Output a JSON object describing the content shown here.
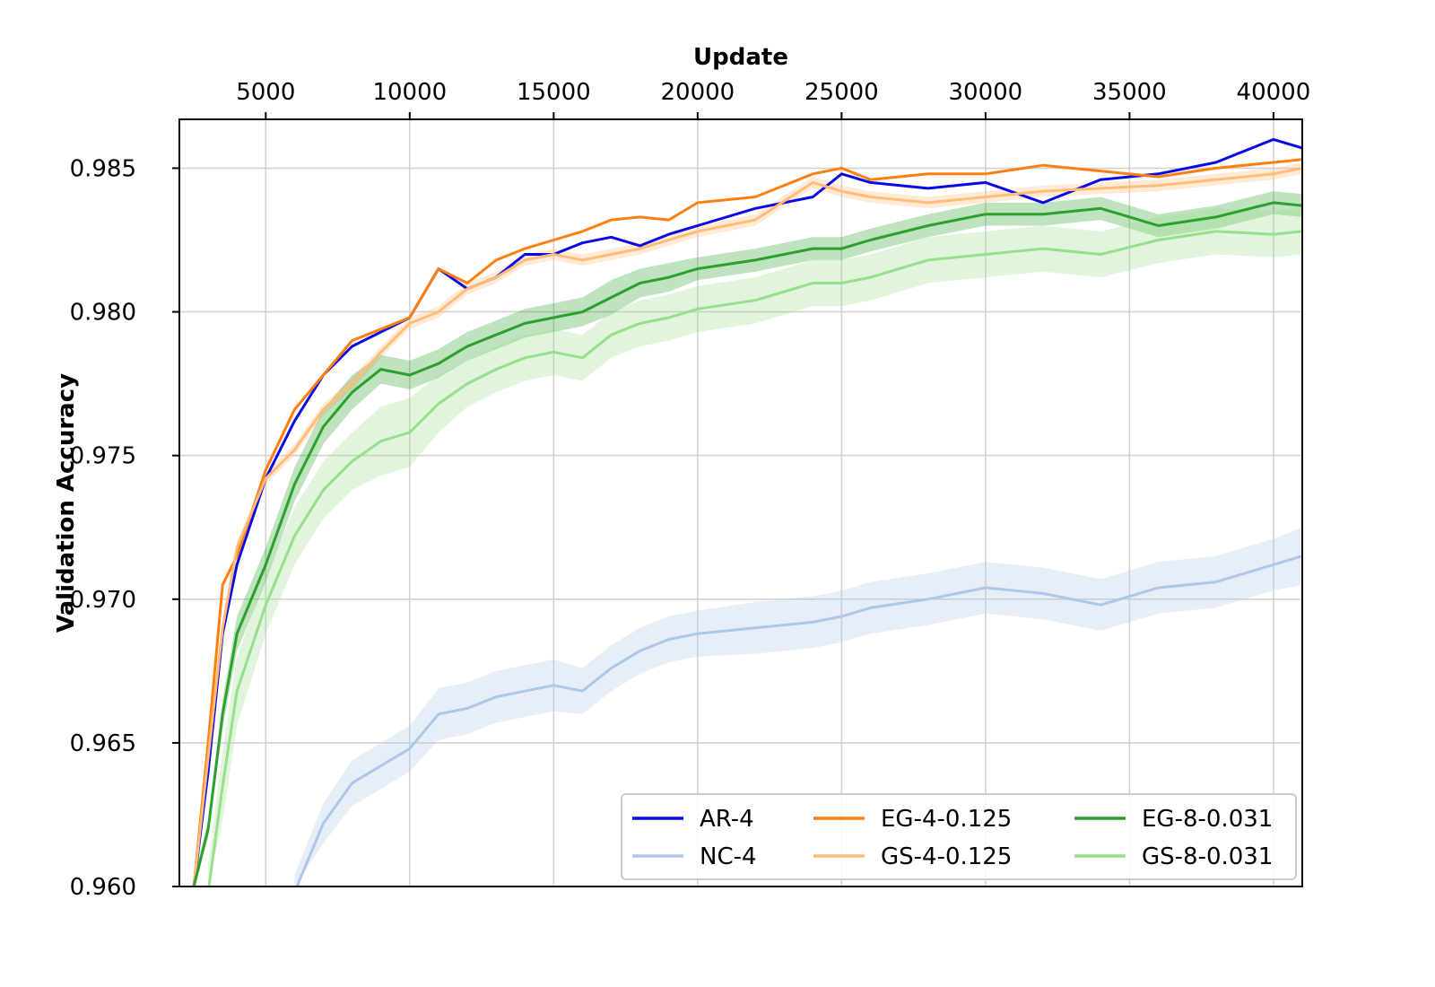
{
  "chart_data": {
    "type": "line",
    "title": "",
    "xlabel": "Update",
    "ylabel": "Validation Accuracy",
    "xaxis_position": "top",
    "xlim": [
      2000,
      41000
    ],
    "ylim": [
      0.96,
      0.9867
    ],
    "xticks": [
      5000,
      10000,
      15000,
      20000,
      25000,
      30000,
      35000,
      40000
    ],
    "yticks": [
      0.96,
      0.965,
      0.97,
      0.975,
      0.98,
      0.985
    ],
    "ytick_labels": [
      "0.960",
      "0.965",
      "0.970",
      "0.975",
      "0.980",
      "0.985"
    ],
    "grid": true,
    "legend_position": "lower-right",
    "legend_columns": 3,
    "x": [
      2500,
      3000,
      3500,
      4000,
      5000,
      6000,
      7000,
      8000,
      9000,
      10000,
      11000,
      12000,
      13000,
      14000,
      15000,
      16000,
      17000,
      18000,
      19000,
      20000,
      22000,
      24000,
      25000,
      26000,
      28000,
      30000,
      32000,
      34000,
      36000,
      38000,
      40000,
      41000
    ],
    "series": [
      {
        "name": "AR-4",
        "color": "#0a0ae6",
        "band": false,
        "values": [
          0.96,
          0.964,
          0.9688,
          0.9712,
          0.9742,
          0.9762,
          0.9778,
          0.9788,
          0.9793,
          0.9798,
          0.9815,
          0.9808,
          0.9812,
          0.982,
          0.982,
          0.9824,
          0.9826,
          0.9823,
          0.9827,
          0.983,
          0.9836,
          0.984,
          0.9848,
          0.9845,
          0.9843,
          0.9845,
          0.9838,
          0.9846,
          0.9848,
          0.9852,
          0.986,
          0.9857
        ]
      },
      {
        "name": "NC-4",
        "color": "#aec7e8",
        "band": true,
        "band_width": [
          0.0003,
          0.0003,
          0.0003,
          0.0003,
          0.0005,
          0.0006,
          0.0007,
          0.0008,
          0.0008,
          0.0008,
          0.0009,
          0.0009,
          0.0009,
          0.0009,
          0.0009,
          0.0008,
          0.0008,
          0.0008,
          0.0008,
          0.0008,
          0.0009,
          0.0009,
          0.0009,
          0.0009,
          0.0009,
          0.0009,
          0.0009,
          0.0009,
          0.0009,
          0.0009,
          0.0009,
          0.001
        ],
        "values": [
          null,
          null,
          null,
          null,
          null,
          0.9598,
          0.9622,
          0.9636,
          0.9642,
          0.9648,
          0.966,
          0.9662,
          0.9666,
          0.9668,
          0.967,
          0.9668,
          0.9676,
          0.9682,
          0.9686,
          0.9688,
          0.969,
          0.9692,
          0.9694,
          0.9697,
          0.97,
          0.9704,
          0.9702,
          0.9698,
          0.9704,
          0.9706,
          0.9712,
          0.9715
        ]
      },
      {
        "name": "EG-4-0.125",
        "color": "#ff7f0e",
        "band": false,
        "values": [
          0.96,
          0.965,
          0.9705,
          0.9715,
          0.9745,
          0.9766,
          0.9778,
          0.979,
          0.9794,
          0.9798,
          0.9815,
          0.981,
          0.9818,
          0.9822,
          0.9825,
          0.9828,
          0.9832,
          0.9833,
          0.9832,
          0.9838,
          0.984,
          0.9848,
          0.985,
          0.9846,
          0.9848,
          0.9848,
          0.9851,
          0.9849,
          0.9847,
          0.985,
          0.9852,
          0.9853
        ]
      },
      {
        "name": "GS-4-0.125",
        "color": "#ffbb78",
        "band": true,
        "band_width": [
          0.0002,
          0.0002,
          0.0002,
          0.0002,
          0.0002,
          0.0002,
          0.0002,
          0.0002,
          0.0002,
          0.0002,
          0.0002,
          0.0002,
          0.0002,
          0.0002,
          0.0002,
          0.0002,
          0.0002,
          0.0002,
          0.0002,
          0.0002,
          0.0002,
          0.0002,
          0.0002,
          0.0002,
          0.0002,
          0.0002,
          0.0002,
          0.0002,
          0.0002,
          0.0002,
          0.0002,
          0.0002
        ],
        "values": [
          0.96,
          0.9645,
          0.969,
          0.9718,
          0.9742,
          0.9752,
          0.9766,
          0.9775,
          0.9786,
          0.9796,
          0.98,
          0.9808,
          0.9812,
          0.9818,
          0.982,
          0.9818,
          0.982,
          0.9822,
          0.9825,
          0.9828,
          0.9832,
          0.9845,
          0.9842,
          0.984,
          0.9838,
          0.984,
          0.9842,
          0.9843,
          0.9844,
          0.9846,
          0.9848,
          0.985
        ]
      },
      {
        "name": "EG-8-0.031",
        "color": "#2ca02c",
        "band": true,
        "band_width": [
          0.0003,
          0.0003,
          0.0005,
          0.0006,
          0.0006,
          0.0006,
          0.0006,
          0.0006,
          0.0005,
          0.0005,
          0.0005,
          0.0005,
          0.0005,
          0.0005,
          0.0005,
          0.0005,
          0.0006,
          0.0005,
          0.0005,
          0.0004,
          0.0004,
          0.0004,
          0.0004,
          0.0004,
          0.0004,
          0.0004,
          0.0004,
          0.0004,
          0.0004,
          0.0004,
          0.0004,
          0.0004
        ],
        "values": [
          0.96,
          0.962,
          0.966,
          0.9688,
          0.9712,
          0.974,
          0.976,
          0.9772,
          0.978,
          0.9778,
          0.9782,
          0.9788,
          0.9792,
          0.9796,
          0.9798,
          0.98,
          0.9805,
          0.981,
          0.9812,
          0.9815,
          0.9818,
          0.9822,
          0.9822,
          0.9825,
          0.983,
          0.9834,
          0.9834,
          0.9836,
          0.983,
          0.9833,
          0.9838,
          0.9837
        ]
      },
      {
        "name": "GS-8-0.031",
        "color": "#98df8a",
        "band": true,
        "band_width": [
          0.0008,
          0.001,
          0.0012,
          0.0012,
          0.001,
          0.001,
          0.001,
          0.001,
          0.0012,
          0.0012,
          0.001,
          0.0008,
          0.0008,
          0.0008,
          0.0008,
          0.0008,
          0.0008,
          0.0008,
          0.0008,
          0.0008,
          0.0008,
          0.0008,
          0.0008,
          0.0008,
          0.0008,
          0.0008,
          0.0008,
          0.0008,
          0.0008,
          0.0008,
          0.0008,
          0.0008
        ],
        "values": [
          null,
          0.9598,
          0.9635,
          0.9668,
          0.9698,
          0.9722,
          0.9738,
          0.9748,
          0.9755,
          0.9758,
          0.9768,
          0.9775,
          0.978,
          0.9784,
          0.9786,
          0.9784,
          0.9792,
          0.9796,
          0.9798,
          0.9801,
          0.9804,
          0.981,
          0.981,
          0.9812,
          0.9818,
          0.982,
          0.9822,
          0.982,
          0.9825,
          0.9828,
          0.9827,
          0.9828
        ]
      }
    ]
  }
}
